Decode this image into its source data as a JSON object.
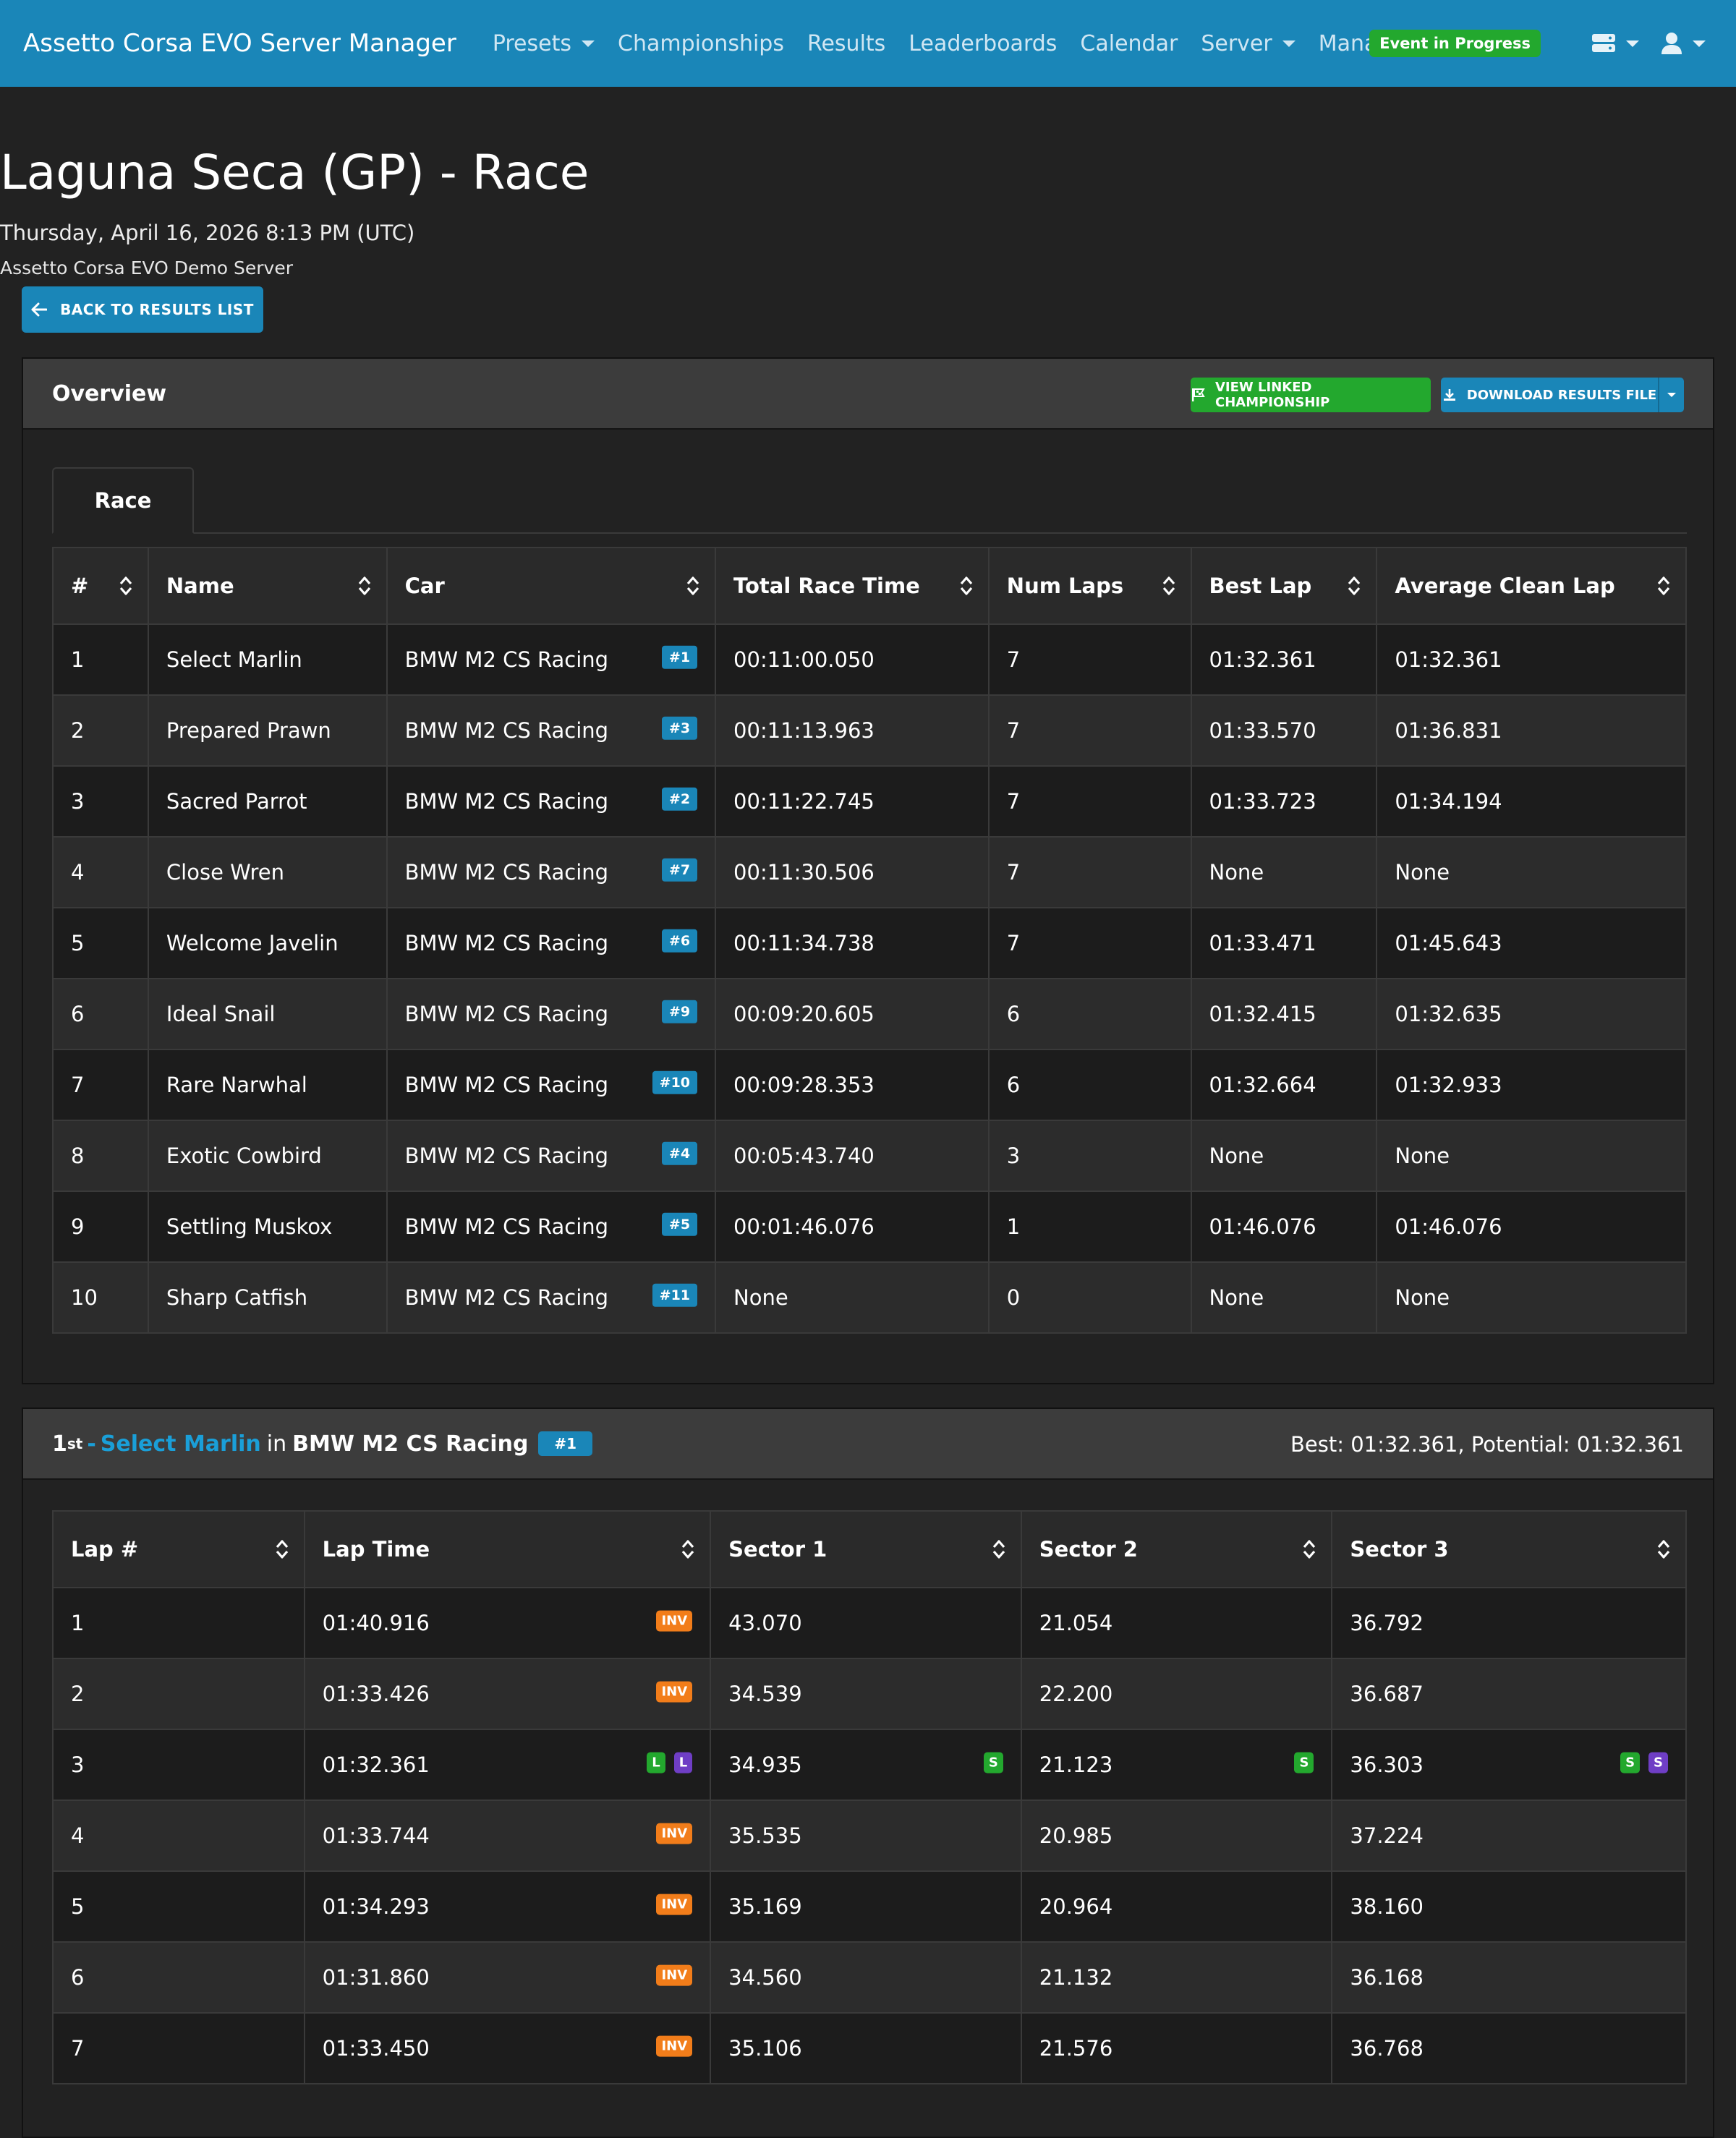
{
  "navbar": {
    "brand": "Assetto Corsa EVO Server Manager",
    "items": [
      {
        "label": "Presets",
        "dropdown": true
      },
      {
        "label": "Championships",
        "dropdown": false
      },
      {
        "label": "Results",
        "dropdown": false
      },
      {
        "label": "Leaderboards",
        "dropdown": false
      },
      {
        "label": "Calendar",
        "dropdown": false
      },
      {
        "label": "Server",
        "dropdown": true
      },
      {
        "label": "Manager",
        "dropdown": true
      }
    ],
    "event_badge": "Event in Progress",
    "icons": [
      "server-icon",
      "user-icon"
    ]
  },
  "page": {
    "title": "Laguna Seca (GP) - Race",
    "date": "Thursday, April 16, 2026 8:13 PM (UTC)",
    "server": "Assetto Corsa EVO Demo Server",
    "back_label": "BACK TO RESULTS LIST"
  },
  "overview": {
    "title": "Overview",
    "view_championship_label": "VIEW LINKED CHAMPIONSHIP",
    "download_label": "DOWNLOAD RESULTS FILE",
    "tab_label": "Race",
    "columns": [
      "#",
      "Name",
      "Car",
      "Total Race Time",
      "Num Laps",
      "Best Lap",
      "Average Clean Lap"
    ],
    "rows": [
      {
        "pos": "1",
        "name": "Select Marlin",
        "car": "BMW M2 CS Racing",
        "num": "#1",
        "total": "00:11:00.050",
        "laps": "7",
        "best": "01:32.361",
        "avg": "01:32.361"
      },
      {
        "pos": "2",
        "name": "Prepared Prawn",
        "car": "BMW M2 CS Racing",
        "num": "#3",
        "total": "00:11:13.963",
        "laps": "7",
        "best": "01:33.570",
        "avg": "01:36.831"
      },
      {
        "pos": "3",
        "name": "Sacred Parrot",
        "car": "BMW M2 CS Racing",
        "num": "#2",
        "total": "00:11:22.745",
        "laps": "7",
        "best": "01:33.723",
        "avg": "01:34.194"
      },
      {
        "pos": "4",
        "name": "Close Wren",
        "car": "BMW M2 CS Racing",
        "num": "#7",
        "total": "00:11:30.506",
        "laps": "7",
        "best": "None",
        "avg": "None"
      },
      {
        "pos": "5",
        "name": "Welcome Javelin",
        "car": "BMW M2 CS Racing",
        "num": "#6",
        "total": "00:11:34.738",
        "laps": "7",
        "best": "01:33.471",
        "avg": "01:45.643"
      },
      {
        "pos": "6",
        "name": "Ideal Snail",
        "car": "BMW M2 CS Racing",
        "num": "#9",
        "total": "00:09:20.605",
        "laps": "6",
        "best": "01:32.415",
        "avg": "01:32.635"
      },
      {
        "pos": "7",
        "name": "Rare Narwhal",
        "car": "BMW M2 CS Racing",
        "num": "#10",
        "total": "00:09:28.353",
        "laps": "6",
        "best": "01:32.664",
        "avg": "01:32.933"
      },
      {
        "pos": "8",
        "name": "Exotic Cowbird",
        "car": "BMW M2 CS Racing",
        "num": "#4",
        "total": "00:05:43.740",
        "laps": "3",
        "best": "None",
        "avg": "None"
      },
      {
        "pos": "9",
        "name": "Settling Muskox",
        "car": "BMW M2 CS Racing",
        "num": "#5",
        "total": "00:01:46.076",
        "laps": "1",
        "best": "01:46.076",
        "avg": "01:46.076"
      },
      {
        "pos": "10",
        "name": "Sharp Catfish",
        "car": "BMW M2 CS Racing",
        "num": "#11",
        "total": "None",
        "laps": "0",
        "best": "None",
        "avg": "None"
      }
    ]
  },
  "driver": {
    "place_num": "1",
    "place_suffix": "st",
    "dash": "-",
    "name": "Select Marlin",
    "in_word": "in",
    "car": "BMW M2 CS Racing",
    "num": "#1",
    "best_potential": "Best: 01:32.361, Potential: 01:32.361",
    "columns": [
      "Lap #",
      "Lap Time",
      "Sector 1",
      "Sector 2",
      "Sector 3"
    ],
    "laps": [
      {
        "lap": "1",
        "time": "01:40.916",
        "time_tags": [
          "INV"
        ],
        "s1": "43.070",
        "s1_tags": [],
        "s2": "21.054",
        "s2_tags": [],
        "s3": "36.792",
        "s3_tags": []
      },
      {
        "lap": "2",
        "time": "01:33.426",
        "time_tags": [
          "INV"
        ],
        "s1": "34.539",
        "s1_tags": [],
        "s2": "22.200",
        "s2_tags": [],
        "s3": "36.687",
        "s3_tags": []
      },
      {
        "lap": "3",
        "time": "01:32.361",
        "time_tags": [
          "L",
          "L"
        ],
        "s1": "34.935",
        "s1_tags": [
          "S"
        ],
        "s2": "21.123",
        "s2_tags": [
          "S"
        ],
        "s3": "36.303",
        "s3_tags": [
          "S",
          "S"
        ]
      },
      {
        "lap": "4",
        "time": "01:33.744",
        "time_tags": [
          "INV"
        ],
        "s1": "35.535",
        "s1_tags": [],
        "s2": "20.985",
        "s2_tags": [],
        "s3": "37.224",
        "s3_tags": []
      },
      {
        "lap": "5",
        "time": "01:34.293",
        "time_tags": [
          "INV"
        ],
        "s1": "35.169",
        "s1_tags": [],
        "s2": "20.964",
        "s2_tags": [],
        "s3": "38.160",
        "s3_tags": []
      },
      {
        "lap": "6",
        "time": "01:31.860",
        "time_tags": [
          "INV"
        ],
        "s1": "34.560",
        "s1_tags": [],
        "s2": "21.132",
        "s2_tags": [],
        "s3": "36.168",
        "s3_tags": []
      },
      {
        "lap": "7",
        "time": "01:33.450",
        "time_tags": [
          "INV"
        ],
        "s1": "35.106",
        "s1_tags": [],
        "s2": "21.576",
        "s2_tags": [],
        "s3": "36.768",
        "s3_tags": []
      }
    ]
  },
  "colors": {
    "navbar": "#1a86b8",
    "background": "#222222",
    "green": "#23a82e",
    "orange": "#f27d1a",
    "purple": "#6f3ec5"
  }
}
